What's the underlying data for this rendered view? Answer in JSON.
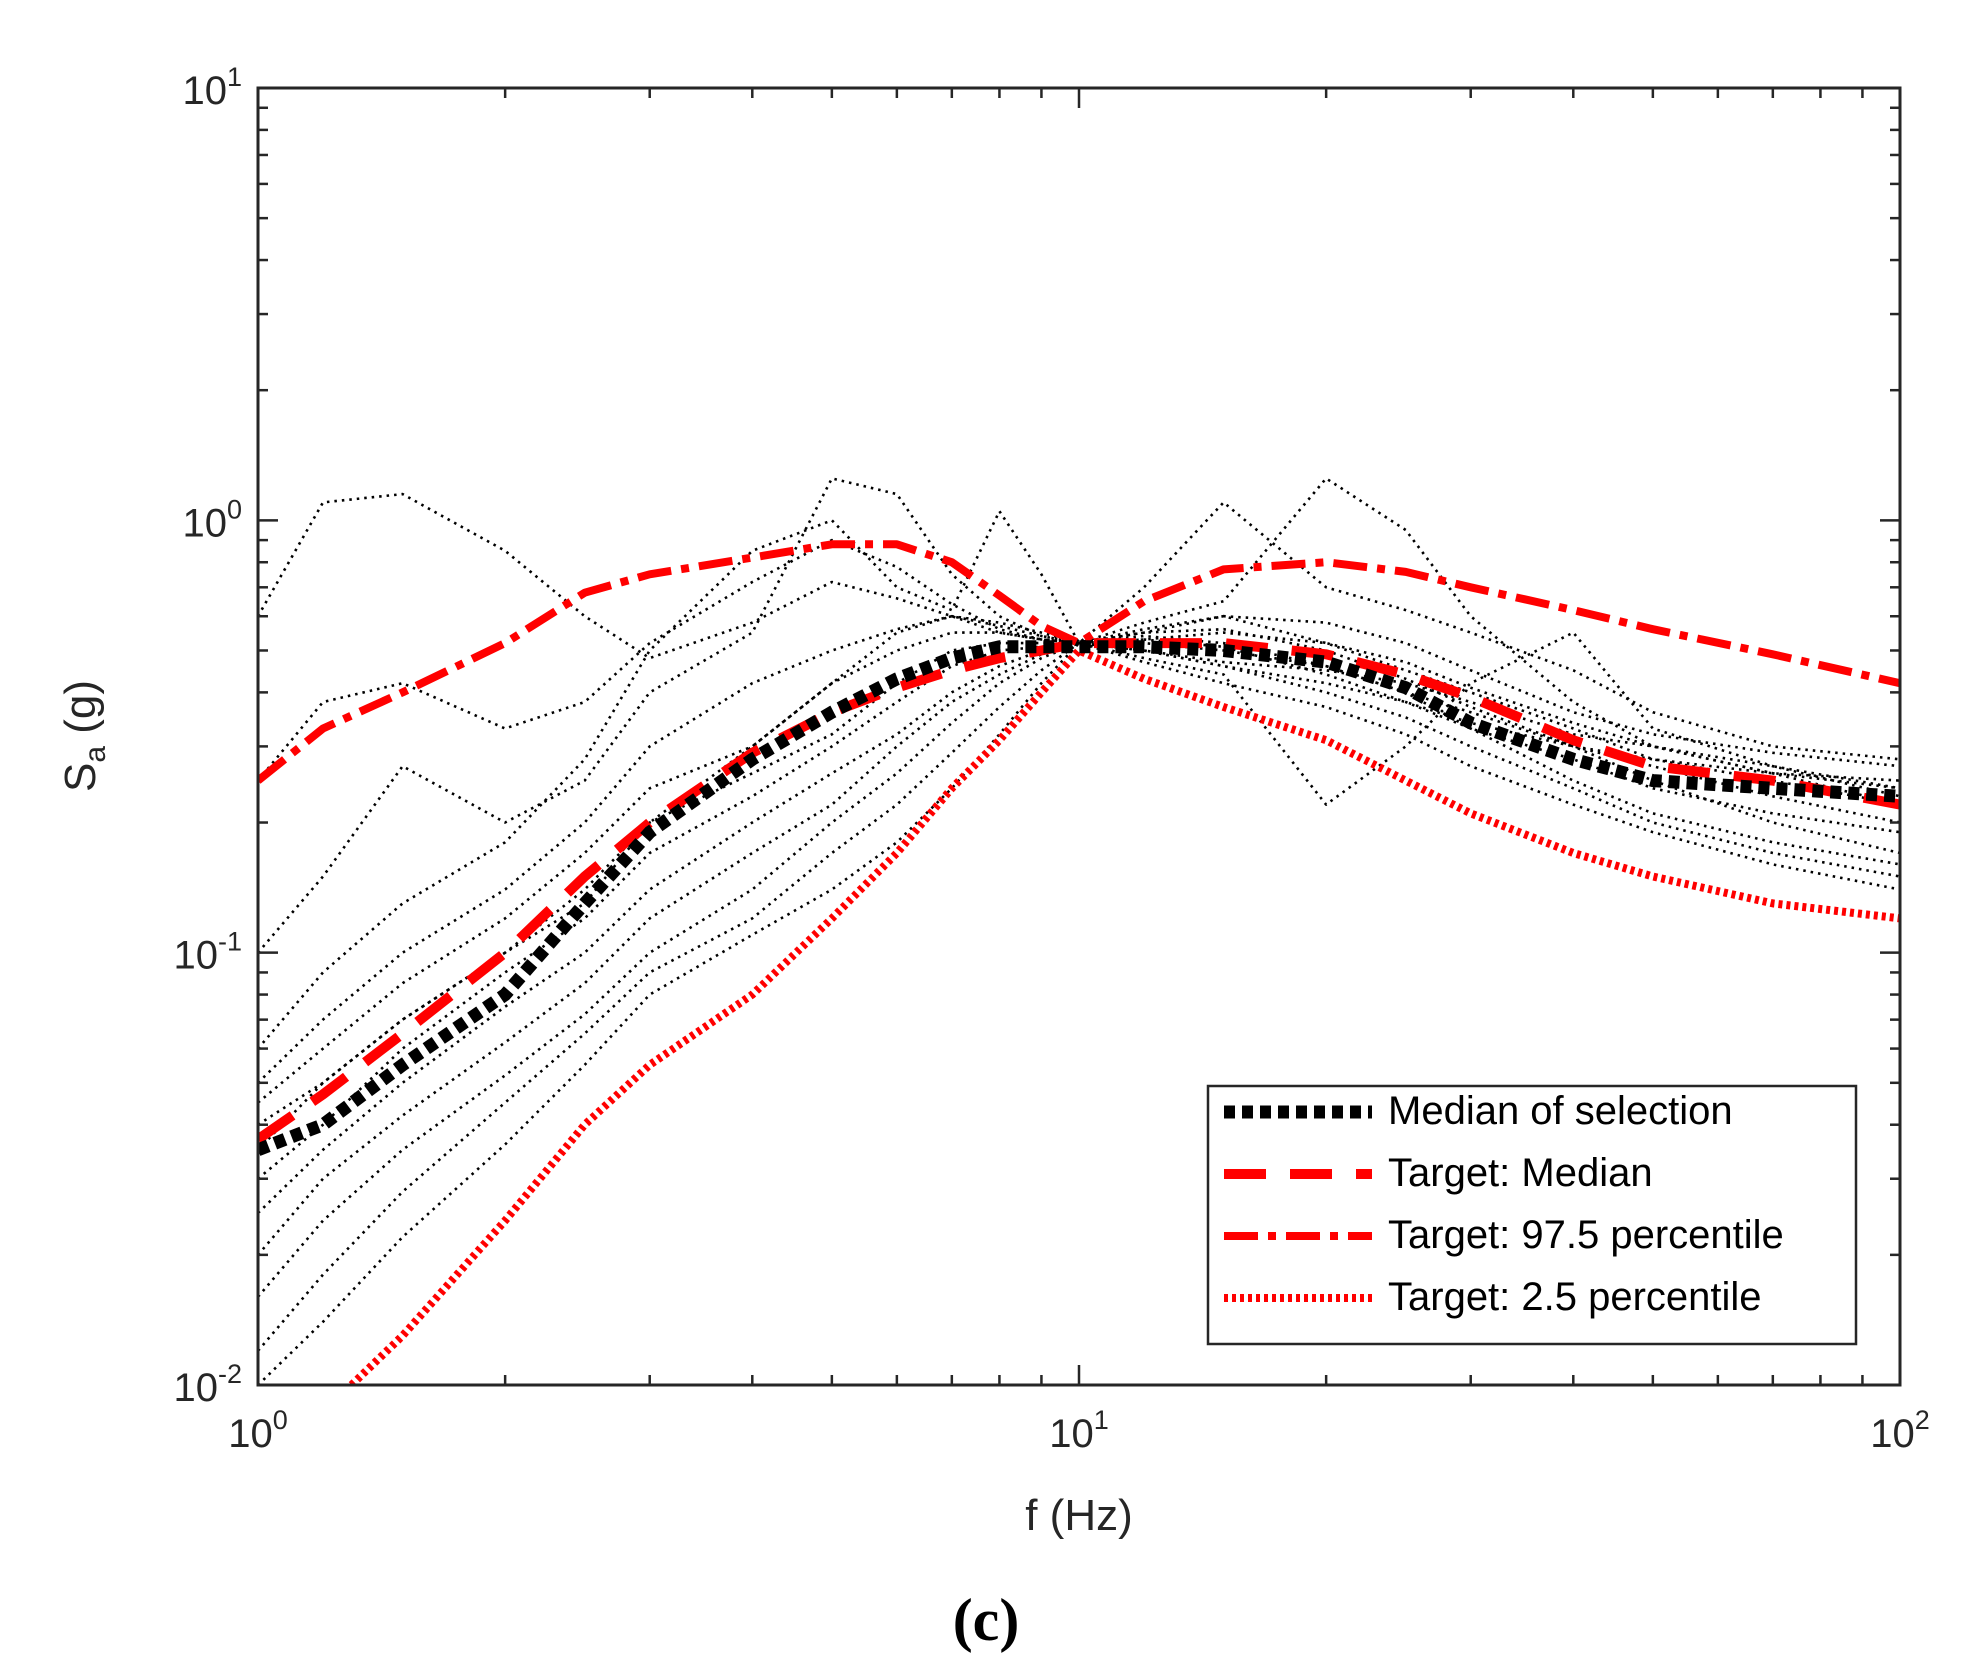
{
  "panel_label": "(c)",
  "chart_data": {
    "type": "line",
    "title": "",
    "xlabel": "f (Hz)",
    "ylabel": {
      "main": "S",
      "sub": "a",
      "rest": " (g)"
    },
    "x_scale": "log",
    "y_scale": "log",
    "xlim": [
      1,
      100
    ],
    "ylim": [
      0.01,
      10
    ],
    "x_ticks": [
      {
        "value": 1,
        "base": "10",
        "exp": "0"
      },
      {
        "value": 10,
        "base": "10",
        "exp": "1"
      },
      {
        "value": 100,
        "base": "10",
        "exp": "2"
      }
    ],
    "y_ticks": [
      {
        "value": 0.01,
        "base": "10",
        "exp": "-2"
      },
      {
        "value": 0.1,
        "base": "10",
        "exp": "-1"
      },
      {
        "value": 1,
        "base": "10",
        "exp": "0"
      },
      {
        "value": 10,
        "base": "10",
        "exp": "1"
      }
    ],
    "grid": false,
    "legend_position": "bottom-right",
    "colors": {
      "red": "#ff0000",
      "black": "#000000",
      "axis": "#262626"
    },
    "series": [
      {
        "name": "Median of selection",
        "color": "#000000",
        "style": "dotted-thick",
        "x": [
          1,
          1.2,
          1.5,
          2,
          2.5,
          3,
          4,
          5,
          6,
          7,
          8,
          9,
          10,
          12,
          15,
          20,
          25,
          30,
          40,
          50,
          70,
          100
        ],
        "y": [
          0.035,
          0.04,
          0.055,
          0.08,
          0.13,
          0.19,
          0.28,
          0.36,
          0.43,
          0.48,
          0.51,
          0.51,
          0.51,
          0.51,
          0.5,
          0.47,
          0.41,
          0.34,
          0.28,
          0.25,
          0.24,
          0.23
        ]
      },
      {
        "name": "Target: Median",
        "color": "#ff0000",
        "style": "dashed",
        "x": [
          1,
          1.2,
          1.5,
          2,
          2.5,
          3,
          4,
          5,
          6,
          7,
          8,
          9,
          10,
          12,
          15,
          20,
          25,
          30,
          40,
          50,
          70,
          100
        ],
        "y": [
          0.037,
          0.047,
          0.065,
          0.1,
          0.15,
          0.2,
          0.29,
          0.36,
          0.41,
          0.45,
          0.48,
          0.5,
          0.52,
          0.52,
          0.52,
          0.49,
          0.44,
          0.39,
          0.31,
          0.27,
          0.25,
          0.22
        ]
      },
      {
        "name": "Target: 97.5 percentile",
        "color": "#ff0000",
        "style": "dash-dot",
        "x": [
          1,
          1.2,
          1.5,
          2,
          2.5,
          3,
          4,
          5,
          6,
          7,
          8,
          9,
          10,
          12,
          15,
          20,
          25,
          30,
          40,
          50,
          70,
          100
        ],
        "y": [
          0.25,
          0.33,
          0.4,
          0.52,
          0.68,
          0.75,
          0.82,
          0.88,
          0.88,
          0.8,
          0.67,
          0.57,
          0.52,
          0.65,
          0.77,
          0.8,
          0.76,
          0.7,
          0.62,
          0.56,
          0.49,
          0.42
        ]
      },
      {
        "name": "Target: 2.5 percentile",
        "color": "#ff0000",
        "style": "dotted",
        "x": [
          1.3,
          1.5,
          2,
          2.5,
          3,
          4,
          5,
          6,
          7,
          8,
          9,
          10,
          12,
          15,
          20,
          25,
          30,
          40,
          50,
          70,
          100
        ],
        "y": [
          0.01,
          0.013,
          0.024,
          0.04,
          0.055,
          0.08,
          0.12,
          0.17,
          0.24,
          0.31,
          0.4,
          0.5,
          0.43,
          0.37,
          0.31,
          0.25,
          0.21,
          0.17,
          0.15,
          0.13,
          0.12
        ]
      }
    ],
    "records": {
      "style": "dotted-thin",
      "color": "#000000",
      "x": [
        1,
        1.2,
        1.5,
        2,
        2.5,
        3,
        4,
        5,
        6,
        7,
        8,
        9,
        10,
        12,
        15,
        20,
        25,
        30,
        40,
        50,
        70,
        100
      ],
      "y": [
        [
          0.6,
          1.1,
          1.15,
          0.85,
          0.6,
          0.48,
          0.58,
          0.72,
          0.66,
          0.6,
          0.55,
          0.53,
          0.52,
          0.5,
          0.46,
          0.42,
          0.38,
          0.34,
          0.3,
          0.28,
          0.26,
          0.25
        ],
        [
          0.25,
          0.38,
          0.42,
          0.33,
          0.38,
          0.52,
          0.72,
          0.9,
          0.78,
          0.64,
          0.56,
          0.53,
          0.52,
          0.55,
          0.6,
          0.58,
          0.52,
          0.45,
          0.36,
          0.32,
          0.29,
          0.27
        ],
        [
          0.1,
          0.15,
          0.27,
          0.2,
          0.25,
          0.4,
          0.55,
          1.25,
          1.15,
          0.75,
          0.6,
          0.54,
          0.52,
          0.58,
          0.65,
          1.25,
          0.95,
          0.6,
          0.38,
          0.3,
          0.26,
          0.24
        ],
        [
          0.06,
          0.09,
          0.13,
          0.18,
          0.28,
          0.5,
          0.85,
          1.0,
          0.7,
          0.62,
          1.05,
          0.75,
          0.52,
          0.7,
          1.1,
          0.7,
          0.62,
          0.55,
          0.45,
          0.36,
          0.3,
          0.28
        ],
        [
          0.045,
          0.06,
          0.085,
          0.12,
          0.17,
          0.24,
          0.3,
          0.42,
          0.55,
          0.6,
          0.58,
          0.55,
          0.52,
          0.48,
          0.44,
          0.22,
          0.3,
          0.42,
          0.55,
          0.33,
          0.27,
          0.23
        ],
        [
          0.04,
          0.05,
          0.07,
          0.1,
          0.14,
          0.2,
          0.26,
          0.32,
          0.42,
          0.5,
          0.52,
          0.52,
          0.52,
          0.5,
          0.47,
          0.45,
          0.42,
          0.38,
          0.32,
          0.3,
          0.26,
          0.22
        ],
        [
          0.03,
          0.04,
          0.06,
          0.09,
          0.12,
          0.17,
          0.23,
          0.3,
          0.38,
          0.46,
          0.5,
          0.51,
          0.52,
          0.52,
          0.5,
          0.46,
          0.4,
          0.36,
          0.3,
          0.27,
          0.23,
          0.2
        ],
        [
          0.025,
          0.035,
          0.05,
          0.075,
          0.1,
          0.14,
          0.2,
          0.26,
          0.32,
          0.4,
          0.46,
          0.5,
          0.52,
          0.53,
          0.51,
          0.44,
          0.38,
          0.33,
          0.28,
          0.24,
          0.21,
          0.19
        ],
        [
          0.02,
          0.03,
          0.042,
          0.062,
          0.085,
          0.12,
          0.17,
          0.22,
          0.3,
          0.38,
          0.44,
          0.49,
          0.52,
          0.55,
          0.56,
          0.5,
          0.43,
          0.37,
          0.3,
          0.25,
          0.2,
          0.17
        ],
        [
          0.016,
          0.024,
          0.035,
          0.052,
          0.072,
          0.1,
          0.14,
          0.2,
          0.26,
          0.34,
          0.42,
          0.48,
          0.52,
          0.54,
          0.52,
          0.46,
          0.4,
          0.33,
          0.25,
          0.21,
          0.18,
          0.16
        ],
        [
          0.012,
          0.018,
          0.028,
          0.045,
          0.065,
          0.09,
          0.12,
          0.17,
          0.22,
          0.29,
          0.37,
          0.45,
          0.52,
          0.5,
          0.46,
          0.4,
          0.35,
          0.3,
          0.24,
          0.2,
          0.17,
          0.15
        ],
        [
          0.01,
          0.014,
          0.022,
          0.036,
          0.055,
          0.08,
          0.11,
          0.14,
          0.18,
          0.24,
          0.32,
          0.42,
          0.52,
          0.47,
          0.42,
          0.37,
          0.32,
          0.27,
          0.22,
          0.19,
          0.16,
          0.14
        ],
        [
          0.05,
          0.07,
          0.1,
          0.14,
          0.2,
          0.3,
          0.42,
          0.5,
          0.56,
          0.6,
          0.57,
          0.54,
          0.52,
          0.53,
          0.55,
          0.52,
          0.47,
          0.41,
          0.34,
          0.3,
          0.27,
          0.24
        ],
        [
          0.035,
          0.05,
          0.07,
          0.1,
          0.13,
          0.2,
          0.3,
          0.42,
          0.5,
          0.55,
          0.55,
          0.53,
          0.52,
          0.56,
          0.6,
          0.52,
          0.45,
          0.4,
          0.33,
          0.28,
          0.25,
          0.22
        ]
      ]
    }
  },
  "legend": [
    {
      "label": "Median of selection",
      "style": "dotted-thick",
      "color": "#000000"
    },
    {
      "label": "Target: Median",
      "style": "dashed",
      "color": "#ff0000"
    },
    {
      "label": "Target: 97.5 percentile",
      "style": "dash-dot",
      "color": "#ff0000"
    },
    {
      "label": "Target: 2.5 percentile",
      "style": "dotted",
      "color": "#ff0000"
    }
  ]
}
